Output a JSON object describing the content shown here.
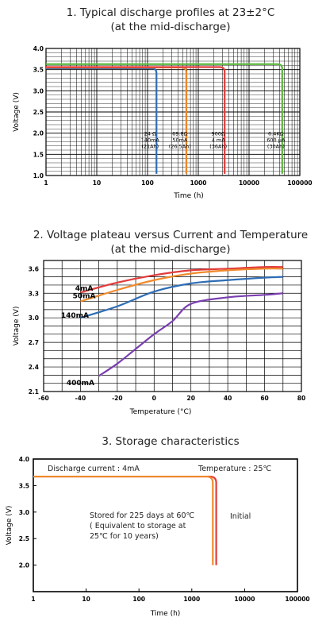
{
  "chart_data": [
    {
      "type": "line",
      "title_line1": "1. Typical discharge profiles at 23±2°C",
      "title_line2": "(at  the mid-discharge)",
      "xlabel": "Time (h)",
      "ylabel": "Voltage (V)",
      "x_scale": "log",
      "xlim": [
        1,
        100000
      ],
      "ylim": [
        1.0,
        4.0
      ],
      "x_ticks": [
        "1",
        "10",
        "100",
        "1000",
        "10000",
        "100000"
      ],
      "y_ticks": [
        "1.0",
        "1.5",
        "2.0",
        "2.5",
        "3.0",
        "3.5",
        "4.0"
      ],
      "grid": true,
      "series": [
        {
          "color": "#2e6db4",
          "plateau": 3.53,
          "end_hours": 150,
          "annotation": [
            "24 Ω",
            "140mA",
            "(21Ah)"
          ]
        },
        {
          "color": "#f08a2c",
          "plateau": 3.55,
          "end_hours": 580,
          "annotation": [
            "69.8Ω",
            "50mA",
            "(26.5Ah)"
          ]
        },
        {
          "color": "#e23b3b",
          "plateau": 3.56,
          "end_hours": 3300,
          "annotation": [
            "900Ω",
            "4 mA",
            "(36Ah)"
          ]
        },
        {
          "color": "#5cb83e",
          "plateau": 3.63,
          "end_hours": 45000,
          "annotation": [
            "6.4KΩ",
            "600 μA",
            "(30Ah)"
          ]
        }
      ]
    },
    {
      "type": "line",
      "title_line1": "2. Voltage plateau versus Current and Temperature",
      "title_line2": "(at the mid-discharge)",
      "xlabel": "Temperature (°C)",
      "ylabel": "Voltage (V)",
      "xlim": [
        -60,
        80
      ],
      "ylim": [
        2.1,
        3.7
      ],
      "x_ticks": [
        "-60",
        "-40",
        "-20",
        "0",
        "20",
        "40",
        "60",
        "80"
      ],
      "y_ticks": [
        "2.1",
        "2.4",
        "2.7",
        "3.0",
        "3.3",
        "3.6"
      ],
      "grid": true,
      "series": [
        {
          "name": "4mA",
          "color": "#e23b3b",
          "x": [
            -40,
            -20,
            0,
            20,
            40,
            60,
            70
          ],
          "y": [
            3.31,
            3.43,
            3.52,
            3.58,
            3.6,
            3.62,
            3.62
          ]
        },
        {
          "name": "50mA",
          "color": "#f08a2c",
          "x": [
            -40,
            -20,
            0,
            20,
            40,
            60,
            70
          ],
          "y": [
            3.2,
            3.34,
            3.46,
            3.54,
            3.58,
            3.6,
            3.6
          ]
        },
        {
          "name": "140mA",
          "color": "#2e6db4",
          "x": [
            -40,
            -20,
            0,
            20,
            40,
            60,
            70
          ],
          "y": [
            3.0,
            3.14,
            3.32,
            3.42,
            3.46,
            3.49,
            3.5
          ]
        },
        {
          "name": "400mA",
          "color": "#7a3fb0",
          "x": [
            -30,
            -20,
            -10,
            0,
            10,
            20,
            40,
            60,
            70
          ],
          "y": [
            2.29,
            2.44,
            2.62,
            2.8,
            2.96,
            3.17,
            3.25,
            3.28,
            3.3
          ]
        }
      ]
    },
    {
      "type": "line",
      "title": "3. Storage characteristics",
      "xlabel": "Time (h)",
      "ylabel": "Voltage (V)",
      "x_scale": "log",
      "xlim": [
        1,
        100000
      ],
      "ylim": [
        1.5,
        4.0
      ],
      "x_ticks": [
        "1",
        "10",
        "100",
        "1000",
        "10000",
        "100000"
      ],
      "y_ticks": [
        "2.0",
        "2.5",
        "3.0",
        "3.5",
        "4.0"
      ],
      "grid": false,
      "annotations": {
        "current": "Discharge current : 4mA",
        "temperature": "Temperature : 25℃",
        "stored_line1": "Stored for 225 days at 60℃",
        "stored_line2": "( Equivalent to storage at",
        "stored_line3": "25℃ for 10 years)",
        "initial": "Initial"
      },
      "series": [
        {
          "color": "#e23b3b",
          "plateau": 3.67,
          "end_hours": 2900
        },
        {
          "color": "#f08a2c",
          "plateau": 3.67,
          "end_hours": 2500
        }
      ]
    }
  ]
}
